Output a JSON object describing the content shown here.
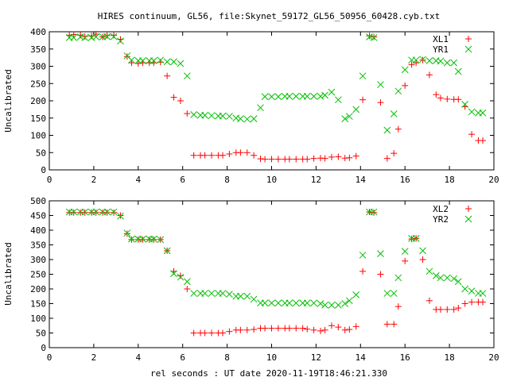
{
  "figure": {
    "title": "HIRES continuum, GL56, file:Skynet_59172_GL56_50956_60428.cyb.txt",
    "xlabel": "rel seconds : UT date 2020-11-19T18:46:21.330"
  },
  "colors": {
    "red": "#ff0000",
    "green": "#00c000",
    "axis": "#000000",
    "background": "#ffffff"
  },
  "chart_data": [
    {
      "type": "scatter",
      "ylabel": "Uncalibrated",
      "xlim": [
        0,
        20
      ],
      "ylim": [
        0,
        400
      ],
      "xticks": [
        0,
        2,
        4,
        6,
        8,
        10,
        12,
        14,
        16,
        18,
        20
      ],
      "yticks": [
        0,
        50,
        100,
        150,
        200,
        250,
        300,
        350,
        400
      ],
      "legend_position": "top-right",
      "series": [
        {
          "name": "XL1",
          "color": "#ff0000",
          "marker": "plus",
          "x": [
            0.9,
            1.1,
            1.4,
            1.6,
            1.9,
            2.1,
            2.4,
            2.6,
            2.9,
            3.2,
            3.5,
            3.7,
            4.0,
            4.2,
            4.5,
            4.7,
            5.0,
            5.3,
            5.6,
            5.9,
            6.2,
            6.5,
            6.8,
            7.0,
            7.3,
            7.6,
            7.8,
            8.1,
            8.4,
            8.6,
            8.9,
            9.2,
            9.5,
            9.7,
            10.0,
            10.3,
            10.6,
            10.8,
            11.1,
            11.4,
            11.6,
            11.9,
            12.2,
            12.4,
            12.7,
            13.0,
            13.3,
            13.5,
            13.8,
            14.1,
            14.4,
            14.6,
            14.9,
            15.2,
            15.5,
            15.7,
            16.0,
            16.3,
            16.5,
            16.8,
            17.1,
            17.4,
            17.6,
            17.9,
            18.2,
            18.4,
            18.7,
            19.0,
            19.3,
            19.5
          ],
          "y": [
            390,
            392,
            390,
            386,
            388,
            393,
            385,
            389,
            390,
            378,
            328,
            310,
            308,
            310,
            310,
            310,
            312,
            272,
            210,
            200,
            163,
            42,
            42,
            42,
            42,
            42,
            42,
            46,
            50,
            50,
            50,
            42,
            32,
            31,
            31,
            31,
            31,
            31,
            31,
            31,
            31,
            33,
            34,
            33,
            37,
            38,
            34,
            35,
            40,
            203,
            388,
            385,
            195,
            33,
            48,
            118,
            244,
            305,
            310,
            318,
            275,
            218,
            208,
            205,
            204,
            204,
            183,
            103,
            85,
            85
          ]
        },
        {
          "name": "YR1",
          "color": "#00c000",
          "marker": "x",
          "x": [
            0.9,
            1.1,
            1.4,
            1.6,
            1.9,
            2.1,
            2.4,
            2.6,
            2.9,
            3.2,
            3.5,
            3.7,
            4.0,
            4.2,
            4.5,
            4.7,
            5.0,
            5.3,
            5.6,
            5.9,
            6.2,
            6.5,
            6.8,
            7.0,
            7.3,
            7.6,
            7.8,
            8.1,
            8.4,
            8.6,
            8.9,
            9.2,
            9.5,
            9.7,
            10.0,
            10.3,
            10.6,
            10.8,
            11.1,
            11.4,
            11.6,
            11.9,
            12.2,
            12.4,
            12.7,
            13.0,
            13.3,
            13.5,
            13.8,
            14.1,
            14.4,
            14.6,
            14.9,
            15.2,
            15.5,
            15.7,
            16.0,
            16.3,
            16.5,
            16.8,
            17.1,
            17.4,
            17.6,
            17.9,
            18.2,
            18.4,
            18.7,
            19.0,
            19.3,
            19.5
          ],
          "y": [
            383,
            383,
            385,
            383,
            383,
            385,
            385,
            386,
            386,
            373,
            330,
            318,
            316,
            316,
            316,
            316,
            318,
            313,
            313,
            308,
            272,
            160,
            158,
            158,
            157,
            156,
            156,
            155,
            150,
            148,
            147,
            148,
            180,
            212,
            212,
            212,
            213,
            213,
            213,
            213,
            213,
            213,
            213,
            216,
            225,
            203,
            148,
            155,
            175,
            272,
            385,
            383,
            247,
            115,
            162,
            228,
            290,
            318,
            318,
            320,
            316,
            316,
            315,
            310,
            310,
            285,
            190,
            168,
            165,
            165
          ]
        }
      ]
    },
    {
      "type": "scatter",
      "ylabel": "Uncalibrated",
      "xlim": [
        0,
        20
      ],
      "ylim": [
        0,
        500
      ],
      "xticks": [
        0,
        2,
        4,
        6,
        8,
        10,
        12,
        14,
        16,
        18,
        20
      ],
      "yticks": [
        0,
        50,
        100,
        150,
        200,
        250,
        300,
        350,
        400,
        450,
        500
      ],
      "legend_position": "top-right",
      "series": [
        {
          "name": "XL2",
          "color": "#ff0000",
          "marker": "plus",
          "x": [
            0.9,
            1.1,
            1.4,
            1.6,
            1.9,
            2.1,
            2.4,
            2.6,
            2.9,
            3.2,
            3.5,
            3.7,
            4.0,
            4.2,
            4.5,
            4.7,
            5.0,
            5.3,
            5.6,
            5.9,
            6.2,
            6.5,
            6.8,
            7.0,
            7.3,
            7.6,
            7.8,
            8.1,
            8.4,
            8.6,
            8.9,
            9.2,
            9.5,
            9.7,
            10.0,
            10.3,
            10.6,
            10.8,
            11.1,
            11.4,
            11.6,
            11.9,
            12.2,
            12.4,
            12.7,
            13.0,
            13.3,
            13.5,
            13.8,
            14.1,
            14.4,
            14.6,
            14.9,
            15.2,
            15.5,
            15.7,
            16.0,
            16.3,
            16.5,
            16.8,
            17.1,
            17.4,
            17.6,
            17.9,
            18.2,
            18.4,
            18.7,
            19.0,
            19.3,
            19.5
          ],
          "y": [
            460,
            460,
            460,
            460,
            460,
            460,
            460,
            460,
            460,
            450,
            388,
            368,
            368,
            368,
            368,
            368,
            368,
            330,
            260,
            245,
            200,
            50,
            50,
            50,
            50,
            50,
            50,
            55,
            60,
            60,
            60,
            62,
            66,
            66,
            66,
            66,
            66,
            66,
            66,
            66,
            63,
            60,
            57,
            60,
            75,
            70,
            60,
            62,
            72,
            260,
            462,
            460,
            250,
            80,
            80,
            140,
            295,
            370,
            372,
            300,
            160,
            130,
            130,
            130,
            130,
            135,
            150,
            155,
            155,
            155
          ]
        },
        {
          "name": "YR2",
          "color": "#00c000",
          "marker": "x",
          "x": [
            0.9,
            1.1,
            1.4,
            1.6,
            1.9,
            2.1,
            2.4,
            2.6,
            2.9,
            3.2,
            3.5,
            3.7,
            4.0,
            4.2,
            4.5,
            4.7,
            5.0,
            5.3,
            5.6,
            5.9,
            6.2,
            6.5,
            6.8,
            7.0,
            7.3,
            7.6,
            7.8,
            8.1,
            8.4,
            8.6,
            8.9,
            9.2,
            9.5,
            9.7,
            10.0,
            10.3,
            10.6,
            10.8,
            11.1,
            11.4,
            11.6,
            11.9,
            12.2,
            12.4,
            12.7,
            13.0,
            13.3,
            13.5,
            13.8,
            14.1,
            14.4,
            14.6,
            14.9,
            15.2,
            15.5,
            15.7,
            16.0,
            16.3,
            16.5,
            16.8,
            17.1,
            17.4,
            17.6,
            17.9,
            18.2,
            18.4,
            18.7,
            19.0,
            19.3,
            19.5
          ],
          "y": [
            462,
            462,
            462,
            462,
            462,
            462,
            462,
            462,
            462,
            448,
            390,
            370,
            370,
            370,
            370,
            370,
            368,
            330,
            252,
            240,
            225,
            185,
            185,
            185,
            185,
            185,
            185,
            182,
            175,
            175,
            175,
            165,
            152,
            152,
            152,
            152,
            152,
            152,
            152,
            152,
            152,
            152,
            150,
            145,
            145,
            145,
            150,
            160,
            180,
            315,
            462,
            462,
            320,
            185,
            185,
            238,
            328,
            372,
            372,
            330,
            260,
            245,
            238,
            238,
            235,
            225,
            200,
            193,
            185,
            185
          ]
        }
      ]
    }
  ]
}
